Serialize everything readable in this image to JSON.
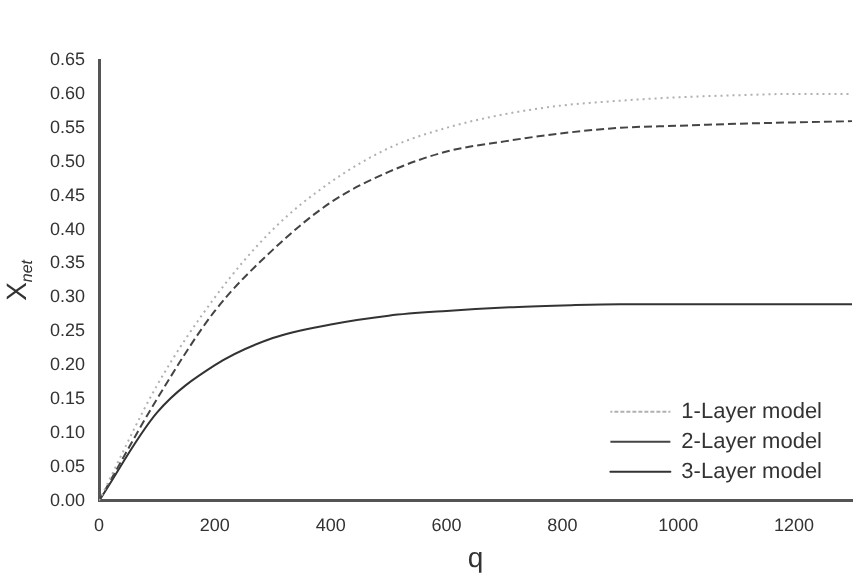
{
  "chart_data": {
    "type": "line",
    "xlabel": "q",
    "ylabel": "X$_{net}$",
    "x": [
      0,
      100,
      200,
      300,
      400,
      500,
      600,
      700,
      800,
      900,
      1000,
      1100,
      1200,
      1300
    ],
    "series": [
      {
        "name": "1-Layer model",
        "color": "#b0b0b0",
        "line_style": "dotted",
        "values": [
          0,
          0.17,
          0.3,
          0.4,
          0.47,
          0.52,
          0.55,
          0.57,
          0.583,
          0.59,
          0.595,
          0.598,
          0.6,
          0.6
        ]
      },
      {
        "name": "2-Layer model",
        "color": "#444444",
        "line_style": "dashed",
        "values": [
          0,
          0.15,
          0.28,
          0.37,
          0.44,
          0.485,
          0.515,
          0.53,
          0.542,
          0.55,
          0.553,
          0.556,
          0.558,
          0.56
        ]
      },
      {
        "name": "3-Layer model",
        "color": "#333333",
        "line_style": "solid",
        "values": [
          0,
          0.13,
          0.2,
          0.24,
          0.26,
          0.273,
          0.28,
          0.285,
          0.288,
          0.29,
          0.29,
          0.29,
          0.29,
          0.29
        ]
      }
    ],
    "xlim": [
      0,
      1300
    ],
    "xticks": [
      0,
      200,
      400,
      600,
      800,
      1000,
      1200
    ],
    "ylim": [
      0,
      0.65
    ],
    "yticks": [
      {
        "value": 0,
        "label": "0.00"
      },
      0.05,
      {
        "value": 0.1,
        "label": "0.10"
      },
      0.15,
      {
        "value": 0.2,
        "label": "0.20"
      },
      0.25,
      {
        "value": 0.3,
        "label": "0.30"
      },
      0.35,
      {
        "value": 0.4,
        "label": "0.40"
      },
      0.45,
      {
        "value": 0.5,
        "label": "0.50"
      },
      0.55,
      {
        "value": 0.6,
        "label": "0.60"
      },
      0.65
    ],
    "grid": false,
    "legend": "bottom right",
    "marker": "none"
  }
}
